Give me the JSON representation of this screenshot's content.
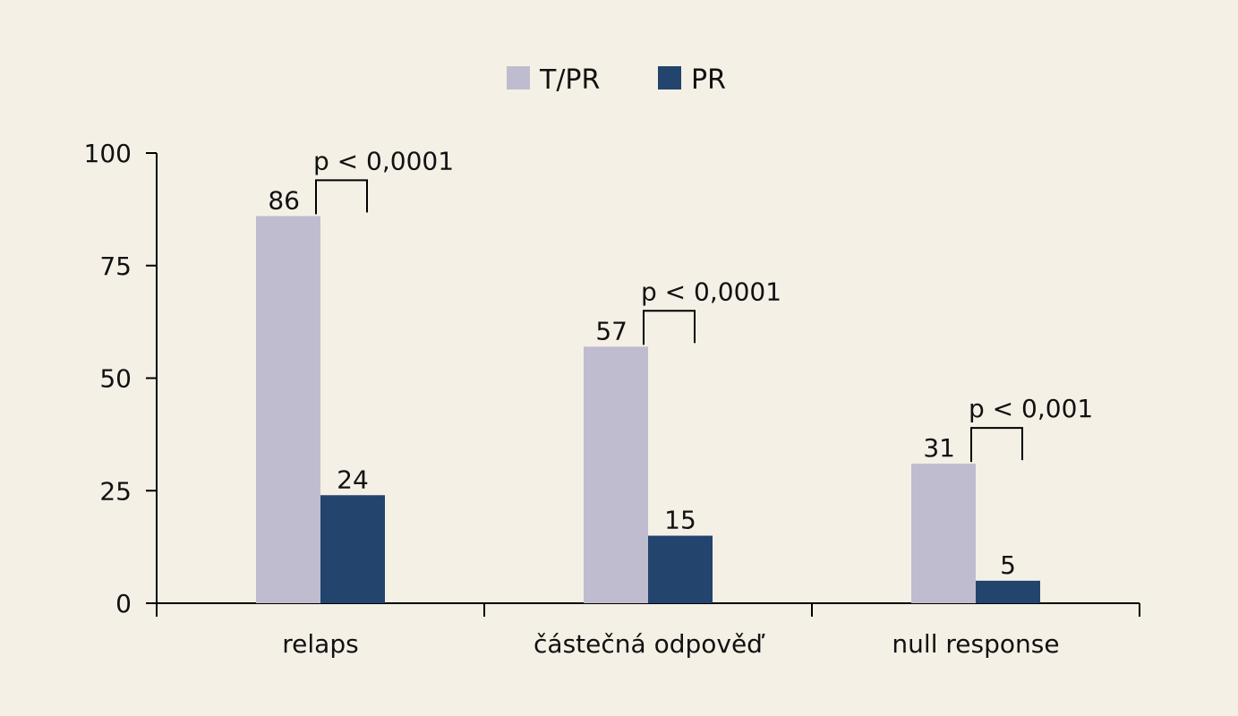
{
  "chart_data": {
    "type": "bar",
    "categories": [
      "relaps",
      "částečná odpověď",
      "null response"
    ],
    "series": [
      {
        "name": "T/PR",
        "values": [
          86,
          57,
          31
        ],
        "color": "#c0bccf"
      },
      {
        "name": "PR",
        "values": [
          24,
          15,
          5
        ],
        "color": "#22446d"
      }
    ],
    "yticks": [
      0,
      25,
      50,
      75,
      100
    ],
    "ylim": [
      0,
      100
    ],
    "legend_position": "top-center",
    "annotations": [
      "p < 0,0001",
      "p < 0,0001",
      "p < 0,001"
    ],
    "grid": false
  }
}
